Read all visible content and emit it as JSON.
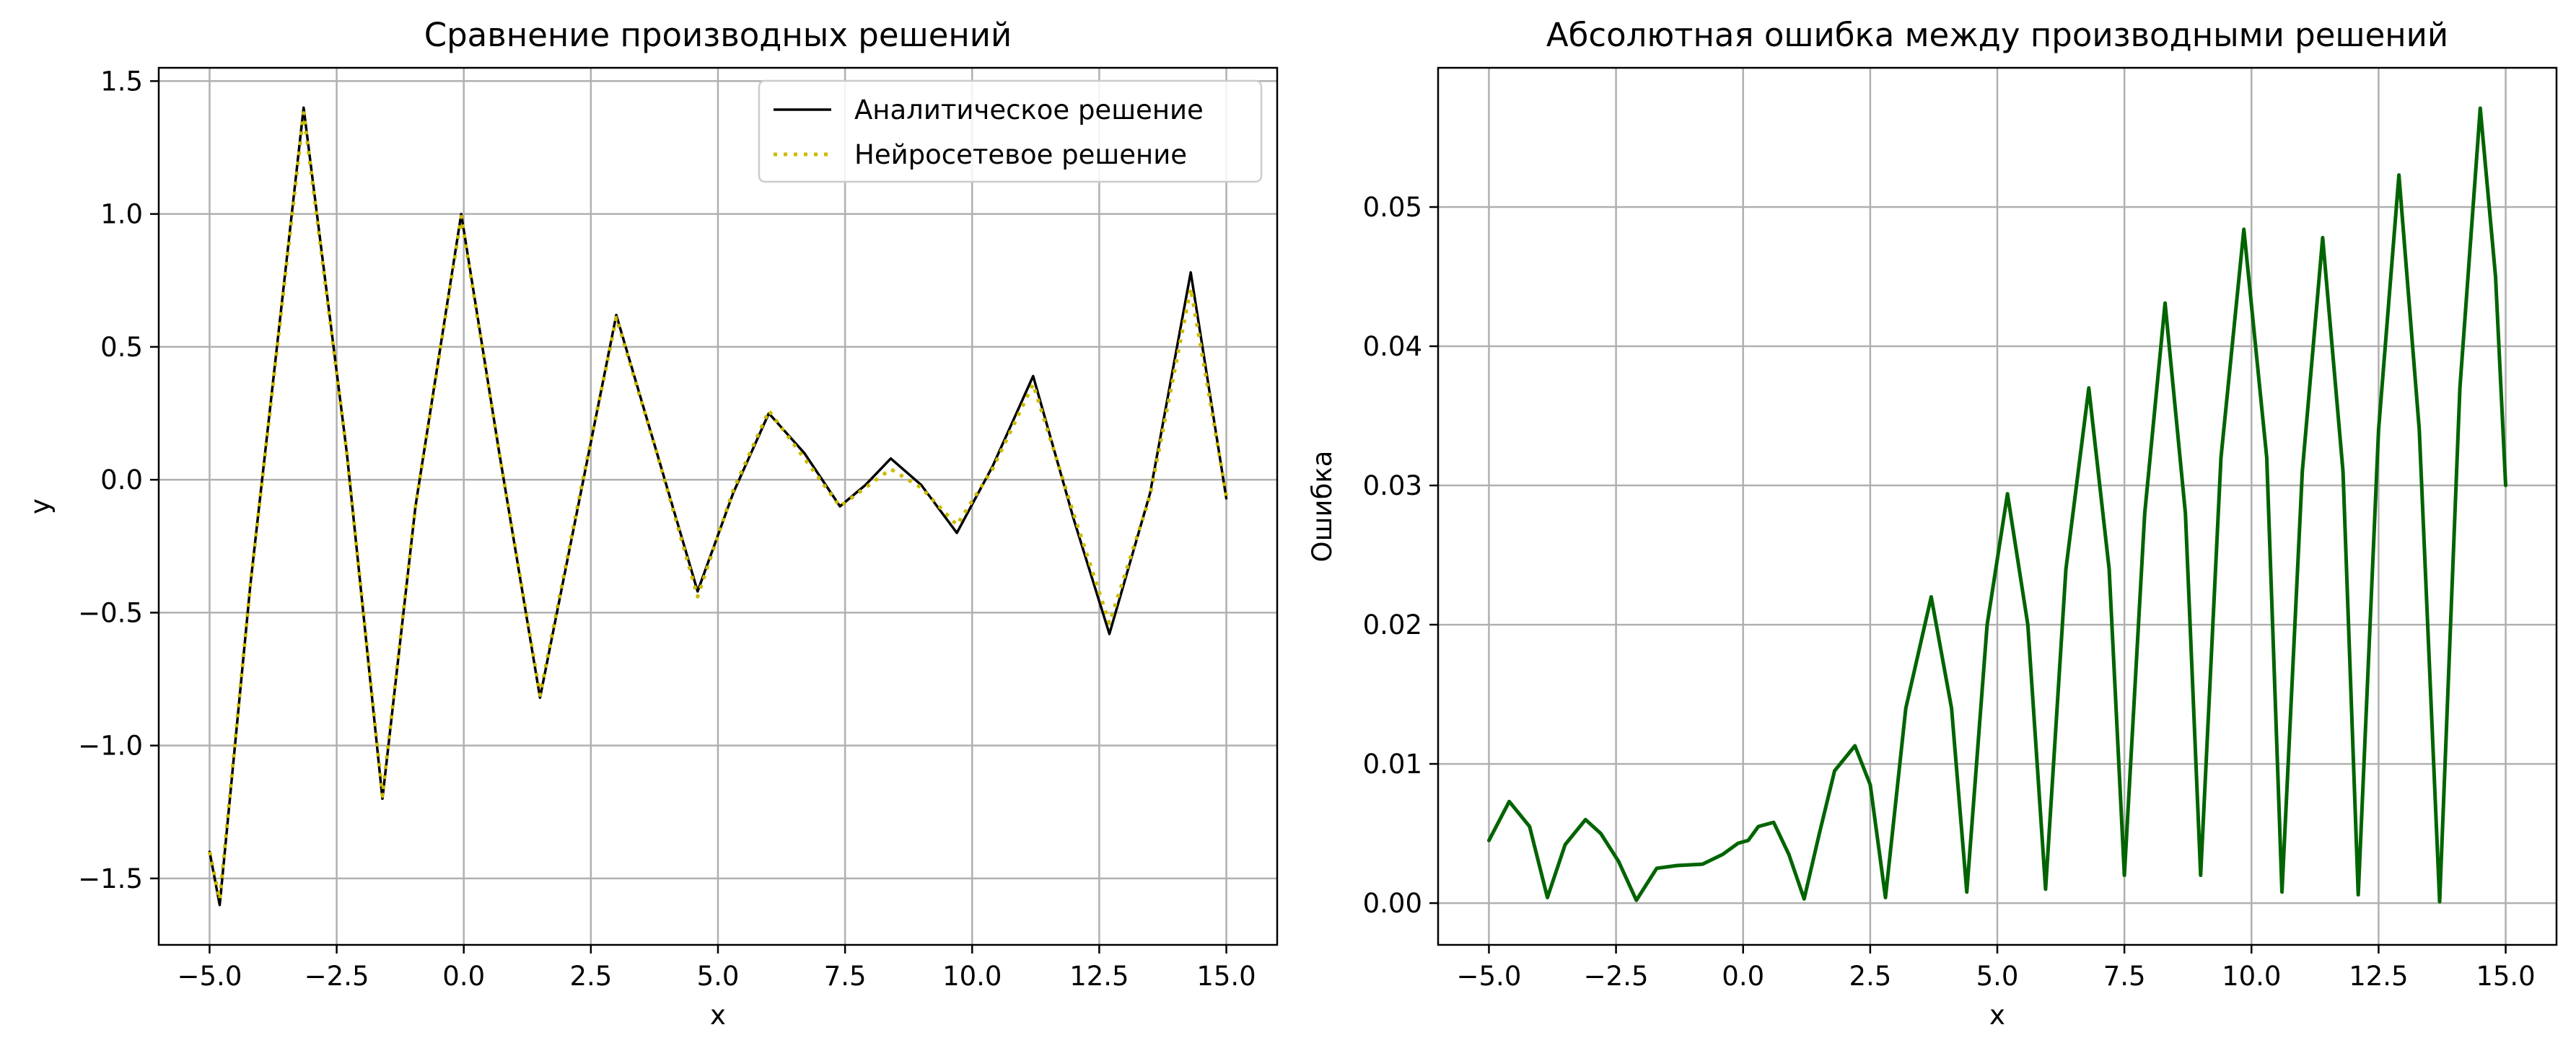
{
  "chart_data": [
    {
      "type": "line",
      "title": "Сравнение производных решений",
      "xlabel": "x",
      "ylabel": "y",
      "xlim": [
        -6.0,
        16.0
      ],
      "ylim": [
        -1.75,
        1.55
      ],
      "xticks": [
        -5.0,
        -2.5,
        0.0,
        2.5,
        5.0,
        7.5,
        10.0,
        12.5,
        15.0
      ],
      "xtick_labels": [
        "−5.0",
        "−2.5",
        "0.0",
        "2.5",
        "5.0",
        "7.5",
        "10.0",
        "12.5",
        "15.0"
      ],
      "yticks": [
        -1.5,
        -1.0,
        -0.5,
        0.0,
        0.5,
        1.0,
        1.5
      ],
      "ytick_labels": [
        "−1.5",
        "−1.0",
        "−0.5",
        "0.0",
        "0.5",
        "1.0",
        "1.5"
      ],
      "grid": true,
      "legend_position": "top-right",
      "series": [
        {
          "name": "Аналитическое решение",
          "color": "#000000",
          "style": "solid",
          "x": [
            -5.0,
            -4.8,
            -4.2,
            -3.15,
            -2.3,
            -1.6,
            -0.95,
            -0.05,
            0.7,
            1.5,
            2.3,
            3.0,
            3.8,
            4.6,
            5.3,
            6.0,
            6.7,
            7.4,
            7.9,
            8.4,
            9.0,
            9.7,
            10.4,
            11.2,
            12.0,
            12.7,
            13.5,
            14.3,
            15.0
          ],
          "y": [
            -1.4,
            -1.6,
            -0.4,
            1.4,
            0.1,
            -1.2,
            -0.1,
            1.0,
            0.1,
            -0.82,
            -0.05,
            0.62,
            0.1,
            -0.42,
            -0.05,
            0.25,
            0.1,
            -0.1,
            -0.02,
            0.08,
            -0.02,
            -0.2,
            0.05,
            0.39,
            -0.15,
            -0.58,
            -0.05,
            0.78,
            -0.07
          ]
        },
        {
          "name": "Нейросетевое решение",
          "color": "#ccbb00",
          "style": "dotted",
          "x": [
            -5.0,
            -4.8,
            -4.2,
            -3.15,
            -2.3,
            -1.6,
            -0.95,
            -0.05,
            0.7,
            1.5,
            2.3,
            3.0,
            3.8,
            4.6,
            5.3,
            6.0,
            6.7,
            7.4,
            7.9,
            8.4,
            9.0,
            9.7,
            10.4,
            11.2,
            12.0,
            12.7,
            13.5,
            14.3,
            15.0
          ],
          "y": [
            -1.4,
            -1.58,
            -0.4,
            1.38,
            0.1,
            -1.19,
            -0.1,
            0.99,
            0.1,
            -0.81,
            -0.04,
            0.61,
            0.1,
            -0.44,
            -0.04,
            0.26,
            0.08,
            -0.1,
            -0.03,
            0.04,
            -0.03,
            -0.17,
            0.04,
            0.36,
            -0.13,
            -0.54,
            -0.06,
            0.72,
            -0.06
          ]
        }
      ]
    },
    {
      "type": "line",
      "title": "Абсолютная ошибка между производными решений",
      "xlabel": "x",
      "ylabel": "Ошибка",
      "xlim": [
        -6.0,
        16.0
      ],
      "ylim": [
        -0.003,
        0.06
      ],
      "xticks": [
        -5.0,
        -2.5,
        0.0,
        2.5,
        5.0,
        7.5,
        10.0,
        12.5,
        15.0
      ],
      "xtick_labels": [
        "−5.0",
        "−2.5",
        "0.0",
        "2.5",
        "5.0",
        "7.5",
        "10.0",
        "12.5",
        "15.0"
      ],
      "yticks": [
        0.0,
        0.01,
        0.02,
        0.03,
        0.04,
        0.05
      ],
      "ytick_labels": [
        "0.00",
        "0.01",
        "0.02",
        "0.03",
        "0.04",
        "0.05"
      ],
      "grid": true,
      "series": [
        {
          "color": "#006400",
          "style": "solid",
          "x": [
            -5.0,
            -4.6,
            -4.2,
            -3.85,
            -3.5,
            -3.1,
            -2.8,
            -2.45,
            -2.1,
            -1.7,
            -1.3,
            -0.8,
            -0.4,
            -0.1,
            0.1,
            0.3,
            0.6,
            0.9,
            1.2,
            1.5,
            1.8,
            2.2,
            2.5,
            2.8,
            3.2,
            3.7,
            4.1,
            4.4,
            4.8,
            5.2,
            5.6,
            5.95,
            6.35,
            6.8,
            7.2,
            7.5,
            7.9,
            8.3,
            8.7,
            9.0,
            9.4,
            9.85,
            10.3,
            10.6,
            11.0,
            11.4,
            11.8,
            12.1,
            12.5,
            12.9,
            13.3,
            13.7,
            14.1,
            14.5,
            14.8,
            15.0
          ],
          "y": [
            0.0045,
            0.0073,
            0.0055,
            0.0004,
            0.0042,
            0.006,
            0.005,
            0.003,
            0.0002,
            0.0025,
            0.0027,
            0.0028,
            0.0035,
            0.0043,
            0.0045,
            0.0055,
            0.0058,
            0.0035,
            0.0003,
            0.005,
            0.0095,
            0.0113,
            0.0085,
            0.0004,
            0.014,
            0.022,
            0.014,
            0.0008,
            0.02,
            0.0294,
            0.02,
            0.001,
            0.024,
            0.037,
            0.024,
            0.002,
            0.028,
            0.0431,
            0.028,
            0.002,
            0.032,
            0.0484,
            0.032,
            0.0008,
            0.031,
            0.0478,
            0.031,
            0.0006,
            0.034,
            0.0523,
            0.034,
            0.0001,
            0.037,
            0.0571,
            0.045,
            0.03
          ]
        }
      ]
    }
  ]
}
